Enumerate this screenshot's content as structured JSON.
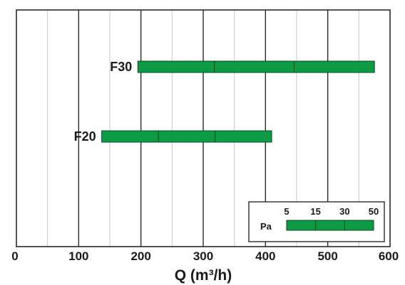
{
  "chart_data": {
    "type": "bar",
    "orientation": "horizontal",
    "title": "",
    "xlabel": "Q (m³/h)",
    "ylabel": "",
    "xlim": [
      0,
      600
    ],
    "xticks": [
      0,
      100,
      200,
      300,
      400,
      500,
      600
    ],
    "minor_grid_step": 50,
    "grid": true,
    "categories": [
      "F30",
      "F20"
    ],
    "bars": [
      {
        "category": "F30",
        "start": 195,
        "segment_bounds": [
          195,
          318,
          446,
          575
        ]
      },
      {
        "category": "F20",
        "start": 137,
        "segment_bounds": [
          137,
          228,
          319,
          410
        ]
      }
    ],
    "legend": {
      "placement": "bottom-right",
      "label": "Pa",
      "ticks": [
        "5",
        "15",
        "30",
        "50"
      ]
    },
    "colors": {
      "bar": "#0c9a44",
      "bar_divider": "#0a4a22",
      "major_grid": "#2a2a2a",
      "minor_grid": "#c8c8c8",
      "frame": "#2a2a2a"
    }
  }
}
